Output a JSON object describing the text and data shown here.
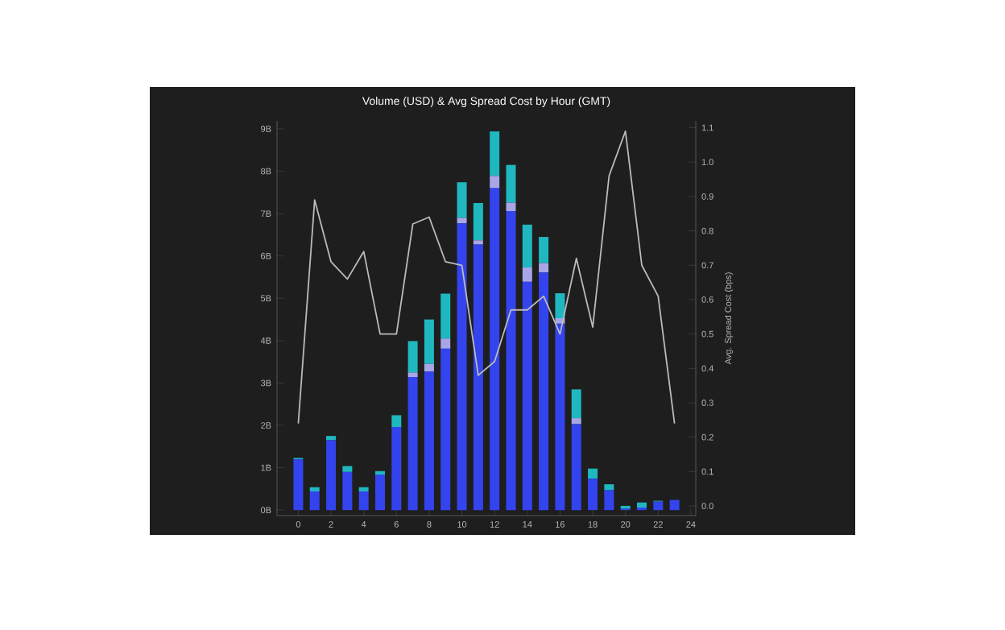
{
  "chart_data": {
    "type": "bar",
    "title": "Volume (USD) & Avg Spread Cost by Hour (GMT)",
    "y2label": "Avg. Spread Cost (bps)",
    "x": [
      0,
      1,
      2,
      3,
      4,
      5,
      6,
      7,
      8,
      9,
      10,
      11,
      12,
      13,
      14,
      15,
      16,
      17,
      18,
      19,
      20,
      21,
      22,
      23
    ],
    "stacked": true,
    "series": [
      {
        "color": "#3344ee",
        "values": [
          1.2,
          0.44,
          1.65,
          0.9,
          0.44,
          0.84,
          1.96,
          3.14,
          3.27,
          3.81,
          6.77,
          6.27,
          7.6,
          7.06,
          5.39,
          5.61,
          4.4,
          2.03,
          0.74,
          0.47,
          0.03,
          0.06,
          0.2,
          0.24
        ]
      },
      {
        "color": "#a9a6e8",
        "values": [
          0,
          0,
          0,
          0,
          0,
          0,
          0,
          0.11,
          0.18,
          0.24,
          0.13,
          0.1,
          0.29,
          0.2,
          0.34,
          0.22,
          0.13,
          0.14,
          0,
          0,
          0,
          0,
          0,
          0
        ]
      },
      {
        "color": "#1fb8c0",
        "values": [
          0.03,
          0.1,
          0.1,
          0.14,
          0.1,
          0.08,
          0.28,
          0.74,
          1.05,
          1.06,
          0.84,
          0.88,
          1.05,
          0.89,
          1.01,
          0.62,
          0.59,
          0.68,
          0.24,
          0.14,
          0.07,
          0.12,
          0.02,
          0
        ]
      },
      {
        "type": "line",
        "axis": "y2",
        "color": "#bbbbbb",
        "values": [
          0.24,
          0.89,
          0.71,
          0.66,
          0.74,
          0.5,
          0.5,
          0.82,
          0.84,
          0.71,
          0.7,
          0.38,
          0.42,
          0.57,
          0.57,
          0.61,
          0.5,
          0.72,
          0.52,
          0.96,
          1.09,
          0.7,
          0.61,
          0.24
        ]
      }
    ],
    "xlim": [
      -1.3,
      24.3
    ],
    "xticks": [
      0,
      2,
      4,
      6,
      8,
      10,
      12,
      14,
      16,
      18,
      20,
      22,
      24
    ],
    "ylim": [
      -0.13,
      9.19
    ],
    "yticks": [
      {
        "value": 0,
        "label": "0B"
      },
      {
        "value": 1,
        "label": "1B"
      },
      {
        "value": 2,
        "label": "2B"
      },
      {
        "value": 3,
        "label": "3B"
      },
      {
        "value": 4,
        "label": "4B"
      },
      {
        "value": 5,
        "label": "5B"
      },
      {
        "value": 6,
        "label": "6B"
      },
      {
        "value": 7,
        "label": "7B"
      },
      {
        "value": 8,
        "label": "8B"
      },
      {
        "value": 9,
        "label": "9B"
      }
    ],
    "y2lim": [
      -0.028,
      1.12
    ],
    "y2ticks": [
      {
        "value": 0,
        "label": "0.0"
      },
      {
        "value": 0.1,
        "label": "0.1"
      },
      {
        "value": 0.2,
        "label": "0.2"
      },
      {
        "value": 0.3,
        "label": "0.3"
      },
      {
        "value": 0.4,
        "label": "0.4"
      },
      {
        "value": 0.5,
        "label": "0.5"
      },
      {
        "value": 0.6,
        "label": "0.6"
      },
      {
        "value": 0.7,
        "label": "0.7"
      },
      {
        "value": 0.8,
        "label": "0.8"
      },
      {
        "value": 0.9,
        "label": "0.9"
      },
      {
        "value": 1,
        "label": "1.0"
      },
      {
        "value": 1.1,
        "label": "1.1"
      }
    ]
  }
}
